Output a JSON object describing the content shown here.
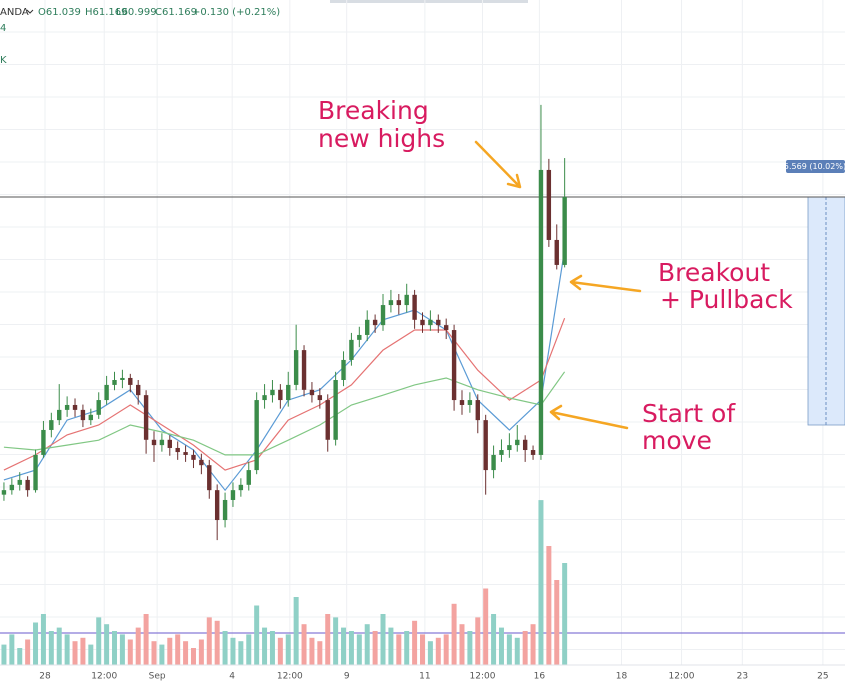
{
  "chart_data": {
    "type": "candlestick",
    "symbol": "ANDA",
    "header": [
      "O61.039",
      "H61.169",
      "L60.999",
      "C61.169",
      "+0.130 (+0.21%)"
    ],
    "legend_fragments": [
      {
        "text": "4",
        "color": "#43a047"
      },
      {
        "text": "K",
        "color": "#ef6c00"
      }
    ],
    "xlim": [
      -0.5,
      106.5
    ],
    "ylim": [
      49.74,
      65.98
    ],
    "xticks": [
      {
        "value": 5.2,
        "label": "28"
      },
      {
        "value": 12.7,
        "label": "12:00"
      },
      {
        "value": 19.4,
        "label": "Sep"
      },
      {
        "value": 28.9,
        "label": "4"
      },
      {
        "value": 36.2,
        "label": "12:00"
      },
      {
        "value": 43.4,
        "label": "9"
      },
      {
        "value": 53.3,
        "label": "11"
      },
      {
        "value": 60.6,
        "label": "12:00"
      },
      {
        "value": 67.8,
        "label": "16"
      },
      {
        "value": 78.2,
        "label": "18"
      },
      {
        "value": 85.8,
        "label": "12:00"
      },
      {
        "value": 93.5,
        "label": "23"
      },
      {
        "value": 103.7,
        "label": "25"
      }
    ],
    "up_color": "#3b8c4a",
    "down_color": "#6b3030",
    "ohlc": [
      [
        53.9,
        54.2,
        53.75,
        54.01
      ],
      [
        54.01,
        54.3,
        53.9,
        54.14
      ],
      [
        54.14,
        54.45,
        54.0,
        54.26
      ],
      [
        54.26,
        54.35,
        53.85,
        54.01
      ],
      [
        54.01,
        55.0,
        53.95,
        54.87
      ],
      [
        54.87,
        55.7,
        54.8,
        55.48
      ],
      [
        55.48,
        55.9,
        55.3,
        55.72
      ],
      [
        55.72,
        56.6,
        55.6,
        55.97
      ],
      [
        55.97,
        56.3,
        55.8,
        56.09
      ],
      [
        56.09,
        56.25,
        55.8,
        55.97
      ],
      [
        55.97,
        56.1,
        55.55,
        55.72
      ],
      [
        55.72,
        56.0,
        55.6,
        55.85
      ],
      [
        55.85,
        56.4,
        55.75,
        56.21
      ],
      [
        56.21,
        56.8,
        56.1,
        56.58
      ],
      [
        56.58,
        56.9,
        56.45,
        56.7
      ],
      [
        56.7,
        56.95,
        56.5,
        56.75
      ],
      [
        56.75,
        56.85,
        56.4,
        56.58
      ],
      [
        56.58,
        56.7,
        56.1,
        56.33
      ],
      [
        56.33,
        56.45,
        54.9,
        55.24
      ],
      [
        55.24,
        55.45,
        54.7,
        55.11
      ],
      [
        55.11,
        55.4,
        54.95,
        55.24
      ],
      [
        55.24,
        55.35,
        54.85,
        55.04
      ],
      [
        55.04,
        55.2,
        54.75,
        54.94
      ],
      [
        54.94,
        55.1,
        54.7,
        54.87
      ],
      [
        54.87,
        55.0,
        54.55,
        54.75
      ],
      [
        54.75,
        54.9,
        54.4,
        54.62
      ],
      [
        54.62,
        54.75,
        53.8,
        54.01
      ],
      [
        54.01,
        54.15,
        52.79,
        53.28
      ],
      [
        53.28,
        53.95,
        53.1,
        53.77
      ],
      [
        53.77,
        54.2,
        53.6,
        54.01
      ],
      [
        54.01,
        54.3,
        53.85,
        54.14
      ],
      [
        54.14,
        54.7,
        54.0,
        54.5
      ],
      [
        54.5,
        56.4,
        54.4,
        56.21
      ],
      [
        56.21,
        56.6,
        56.0,
        56.33
      ],
      [
        56.33,
        56.7,
        56.15,
        56.46
      ],
      [
        56.46,
        56.6,
        56.0,
        56.21
      ],
      [
        56.21,
        56.9,
        56.05,
        56.58
      ],
      [
        56.58,
        58.05,
        56.45,
        57.43
      ],
      [
        57.43,
        57.55,
        56.3,
        56.46
      ],
      [
        56.46,
        56.65,
        56.15,
        56.33
      ],
      [
        56.33,
        56.5,
        56.0,
        56.21
      ],
      [
        56.21,
        56.35,
        54.95,
        55.24
      ],
      [
        55.24,
        56.9,
        55.1,
        56.7
      ],
      [
        56.7,
        57.4,
        56.55,
        57.19
      ],
      [
        57.19,
        57.85,
        57.05,
        57.68
      ],
      [
        57.68,
        58.0,
        57.5,
        57.8
      ],
      [
        57.8,
        58.4,
        57.65,
        58.17
      ],
      [
        58.17,
        58.3,
        57.85,
        58.04
      ],
      [
        58.04,
        58.8,
        57.9,
        58.53
      ],
      [
        58.53,
        58.9,
        58.35,
        58.65
      ],
      [
        58.65,
        58.8,
        58.3,
        58.53
      ],
      [
        58.53,
        59.05,
        58.35,
        58.78
      ],
      [
        58.78,
        58.9,
        57.95,
        58.17
      ],
      [
        58.17,
        58.35,
        57.85,
        58.04
      ],
      [
        58.04,
        58.4,
        57.9,
        58.17
      ],
      [
        58.17,
        58.3,
        57.85,
        58.04
      ],
      [
        58.04,
        58.2,
        57.7,
        57.92
      ],
      [
        57.92,
        58.05,
        55.95,
        56.21
      ],
      [
        56.21,
        56.45,
        55.85,
        56.09
      ],
      [
        56.09,
        56.4,
        55.9,
        56.21
      ],
      [
        56.21,
        56.35,
        55.4,
        55.72
      ],
      [
        55.72,
        55.85,
        53.9,
        54.5
      ],
      [
        54.5,
        55.1,
        54.3,
        54.87
      ],
      [
        54.87,
        55.25,
        54.7,
        54.99
      ],
      [
        54.99,
        55.4,
        54.8,
        55.11
      ],
      [
        55.11,
        55.6,
        54.95,
        55.24
      ],
      [
        55.24,
        55.35,
        54.7,
        54.99
      ],
      [
        54.99,
        55.1,
        54.75,
        54.87
      ],
      [
        54.87,
        63.42,
        54.75,
        61.83
      ],
      [
        61.83,
        62.1,
        59.95,
        60.12
      ],
      [
        60.12,
        60.5,
        59.4,
        59.51
      ],
      [
        59.51,
        62.12,
        59.45,
        61.17
      ]
    ],
    "moving_averages": [
      {
        "color": "#5b9bd5",
        "x": [
          0,
          4,
          8,
          12,
          16,
          20,
          24,
          28,
          32,
          36,
          40,
          44,
          48,
          52,
          56,
          60,
          64,
          68,
          71
        ],
        "values": [
          54.26,
          54.5,
          55.72,
          55.97,
          56.46,
          55.48,
          54.99,
          54.01,
          54.99,
          56.21,
          56.46,
          57.19,
          58.17,
          58.41,
          57.92,
          56.21,
          55.48,
          56.21,
          59.88
        ]
      },
      {
        "color": "#e57373",
        "x": [
          0,
          4,
          8,
          12,
          16,
          20,
          24,
          28,
          32,
          36,
          40,
          44,
          48,
          52,
          56,
          60,
          64,
          68,
          71
        ],
        "values": [
          54.5,
          54.87,
          55.36,
          55.6,
          56.09,
          55.6,
          55.11,
          54.5,
          54.75,
          55.72,
          56.09,
          56.58,
          57.43,
          57.92,
          57.92,
          56.94,
          56.21,
          56.7,
          58.21
        ]
      },
      {
        "color": "#81c784",
        "x": [
          0,
          4,
          8,
          12,
          16,
          20,
          24,
          28,
          32,
          36,
          40,
          44,
          48,
          52,
          56,
          60,
          64,
          68,
          71
        ],
        "values": [
          55.06,
          54.99,
          55.11,
          55.23,
          55.6,
          55.43,
          55.23,
          54.87,
          54.87,
          55.23,
          55.6,
          56.09,
          56.33,
          56.58,
          56.75,
          56.46,
          56.26,
          56.09,
          56.9
        ]
      }
    ],
    "volume_ylim": [
      0,
      100
    ],
    "volume_up_color": "#8fd0c6",
    "volume_down_color": "#f3a3a0",
    "volume": [
      12,
      18,
      10,
      15,
      25,
      30,
      20,
      22,
      18,
      14,
      16,
      12,
      28,
      24,
      20,
      18,
      15,
      22,
      30,
      14,
      12,
      16,
      18,
      14,
      10,
      15,
      28,
      26,
      20,
      16,
      14,
      18,
      35,
      22,
      20,
      16,
      18,
      40,
      24,
      16,
      14,
      30,
      28,
      22,
      20,
      18,
      24,
      20,
      30,
      22,
      18,
      20,
      26,
      18,
      14,
      16,
      18,
      36,
      24,
      20,
      28,
      45,
      30,
      22,
      18,
      16,
      20,
      24,
      97,
      70,
      50,
      60
    ],
    "measure": {
      "low": 55.601,
      "high": 61.17,
      "label": "5.569 (10.02%)"
    },
    "annotations": [
      [
        "Breaking",
        "new highs"
      ],
      [
        "Breakout",
        "+ Pullback"
      ],
      [
        "Start of",
        "move"
      ]
    ]
  }
}
